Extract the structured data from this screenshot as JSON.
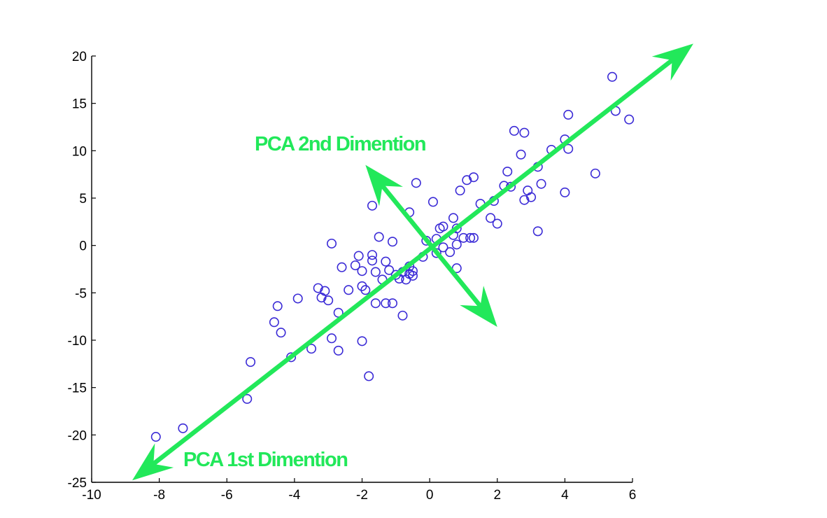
{
  "colors": {
    "points": "#3a2ad6",
    "arrows": "#22e85a",
    "axis": "#000000"
  },
  "chart_data": {
    "type": "scatter",
    "title": "",
    "xlabel": "",
    "ylabel": "",
    "xlim": [
      -10,
      6
    ],
    "ylim": [
      -25,
      20
    ],
    "xticks": [
      -10,
      -8,
      -6,
      -4,
      -2,
      0,
      2,
      4,
      6
    ],
    "yticks": [
      -25,
      -20,
      -15,
      -10,
      -5,
      0,
      5,
      10,
      15,
      20
    ],
    "grid": false,
    "marker": "circle-open",
    "series": [
      {
        "points": [
          [
            -8.1,
            -20.2
          ],
          [
            -7.3,
            -19.3
          ],
          [
            -5.4,
            -16.2
          ],
          [
            -5.3,
            -12.3
          ],
          [
            -4.6,
            -8.1
          ],
          [
            -4.5,
            -6.4
          ],
          [
            -4.4,
            -9.2
          ],
          [
            -4.1,
            -11.8
          ],
          [
            -3.9,
            -5.6
          ],
          [
            -3.5,
            -10.9
          ],
          [
            -3.3,
            -4.5
          ],
          [
            -3.2,
            -5.5
          ],
          [
            -3.1,
            -4.8
          ],
          [
            -3.0,
            -5.8
          ],
          [
            -2.9,
            0.2
          ],
          [
            -2.9,
            -9.8
          ],
          [
            -2.7,
            -7.1
          ],
          [
            -2.7,
            -11.1
          ],
          [
            -2.6,
            -2.3
          ],
          [
            -2.4,
            -4.7
          ],
          [
            -2.2,
            -2.1
          ],
          [
            -2.1,
            -1.1
          ],
          [
            -2.0,
            -2.7
          ],
          [
            -2.0,
            -4.3
          ],
          [
            -2.0,
            -10.1
          ],
          [
            -1.9,
            -4.7
          ],
          [
            -1.8,
            -13.8
          ],
          [
            -1.7,
            4.2
          ],
          [
            -1.7,
            -1.0
          ],
          [
            -1.7,
            -1.6
          ],
          [
            -1.6,
            -2.8
          ],
          [
            -1.6,
            -6.1
          ],
          [
            -1.5,
            0.9
          ],
          [
            -1.4,
            -3.6
          ],
          [
            -1.3,
            -1.7
          ],
          [
            -1.3,
            -6.1
          ],
          [
            -1.2,
            -2.6
          ],
          [
            -1.1,
            -6.1
          ],
          [
            -1.1,
            0.4
          ],
          [
            -1.0,
            -3.1
          ],
          [
            -0.9,
            -3.5
          ],
          [
            -0.8,
            -7.4
          ],
          [
            -0.8,
            -2.8
          ],
          [
            -0.7,
            -3.6
          ],
          [
            -0.6,
            -2.2
          ],
          [
            -0.6,
            -3.0
          ],
          [
            -0.5,
            -2.7
          ],
          [
            -0.5,
            -3.2
          ],
          [
            -0.4,
            6.6
          ],
          [
            -0.6,
            3.5
          ],
          [
            -0.2,
            -1.2
          ],
          [
            -0.1,
            0.5
          ],
          [
            0.1,
            4.6
          ],
          [
            0.2,
            0.7
          ],
          [
            0.2,
            -0.8
          ],
          [
            0.3,
            1.8
          ],
          [
            0.4,
            2.0
          ],
          [
            0.4,
            -0.2
          ],
          [
            0.6,
            -0.7
          ],
          [
            0.7,
            1.1
          ],
          [
            0.7,
            2.9
          ],
          [
            0.8,
            -2.4
          ],
          [
            0.8,
            0.1
          ],
          [
            0.8,
            1.8
          ],
          [
            0.9,
            5.8
          ],
          [
            1.0,
            0.8
          ],
          [
            1.1,
            6.9
          ],
          [
            1.2,
            0.8
          ],
          [
            1.3,
            7.2
          ],
          [
            1.3,
            0.8
          ],
          [
            1.5,
            4.4
          ],
          [
            1.8,
            2.9
          ],
          [
            1.9,
            4.7
          ],
          [
            2.0,
            2.3
          ],
          [
            2.2,
            6.3
          ],
          [
            2.3,
            7.8
          ],
          [
            2.4,
            6.2
          ],
          [
            2.5,
            12.1
          ],
          [
            2.7,
            9.6
          ],
          [
            2.8,
            4.8
          ],
          [
            2.8,
            11.9
          ],
          [
            2.9,
            5.8
          ],
          [
            3.0,
            5.1
          ],
          [
            3.2,
            8.3
          ],
          [
            3.2,
            1.5
          ],
          [
            3.3,
            6.5
          ],
          [
            3.6,
            10.1
          ],
          [
            4.0,
            11.2
          ],
          [
            4.0,
            5.6
          ],
          [
            4.1,
            10.2
          ],
          [
            4.1,
            13.8
          ],
          [
            4.9,
            7.6
          ],
          [
            5.4,
            17.8
          ],
          [
            5.5,
            14.2
          ],
          [
            5.9,
            13.3
          ]
        ]
      }
    ],
    "annotations": [
      {
        "text": "PCA 1st Dimention",
        "arrow_from": [
          -8.8,
          -24.8
        ],
        "arrow_to": [
          7.8,
          21.3
        ]
      },
      {
        "text": "PCA 2nd Dimention",
        "arrow_from": [
          -1.9,
          8.5
        ],
        "arrow_to": [
          2.0,
          -8.6
        ]
      }
    ]
  }
}
